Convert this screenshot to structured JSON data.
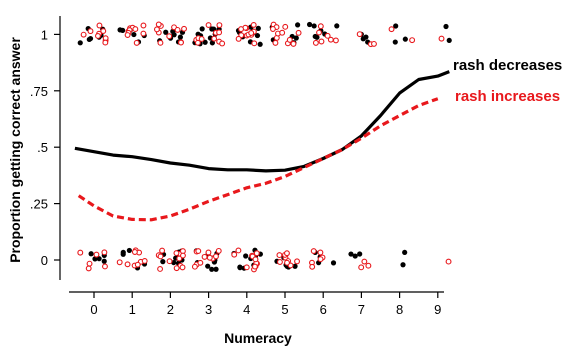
{
  "chart_data": {
    "type": "scatter",
    "xlabel": "Numeracy",
    "ylabel": "Proportion getting correct answer",
    "xlim": [
      -0.6,
      9.3
    ],
    "ylim": [
      -0.13,
      1.08
    ],
    "x_ticks": [
      "0",
      "1",
      "2",
      "3",
      "4",
      "5",
      "6",
      "7",
      "8",
      "9"
    ],
    "y_ticks": [
      {
        "value": 0,
        "label": "0"
      },
      {
        "value": 0.25,
        "label": ".25"
      },
      {
        "value": 0.5,
        "label": ".5"
      },
      {
        "value": 0.75,
        "label": ".75"
      },
      {
        "value": 1,
        "label": "1"
      }
    ],
    "grid": false,
    "legend_placement": "right",
    "series": [
      {
        "name": "rash decreases",
        "color": "#000000",
        "style": "solid",
        "marker": "filled-dot",
        "curve_x": [
          -0.5,
          0,
          0.5,
          1,
          1.5,
          2,
          2.5,
          3,
          3.5,
          4,
          4.5,
          5,
          5.5,
          6,
          6.5,
          7,
          7.5,
          8,
          8.5,
          9,
          9.3
        ],
        "curve_y": [
          0.495,
          0.48,
          0.465,
          0.458,
          0.445,
          0.43,
          0.42,
          0.405,
          0.4,
          0.4,
          0.395,
          0.398,
          0.415,
          0.45,
          0.49,
          0.55,
          0.64,
          0.74,
          0.8,
          0.815,
          0.835
        ]
      },
      {
        "name": "rash increases",
        "color": "#e8181c",
        "style": "dashed",
        "marker": "hollow-circle",
        "curve_x": [
          -0.4,
          0,
          0.5,
          1,
          1.5,
          2,
          2.5,
          3,
          3.5,
          4,
          4.5,
          5,
          5.5,
          6,
          6.5,
          7,
          7.5,
          8,
          8.5,
          9
        ],
        "curve_y": [
          0.285,
          0.24,
          0.195,
          0.18,
          0.178,
          0.195,
          0.225,
          0.26,
          0.29,
          0.32,
          0.34,
          0.37,
          0.41,
          0.45,
          0.49,
          0.54,
          0.595,
          0.64,
          0.685,
          0.715
        ]
      }
    ]
  }
}
